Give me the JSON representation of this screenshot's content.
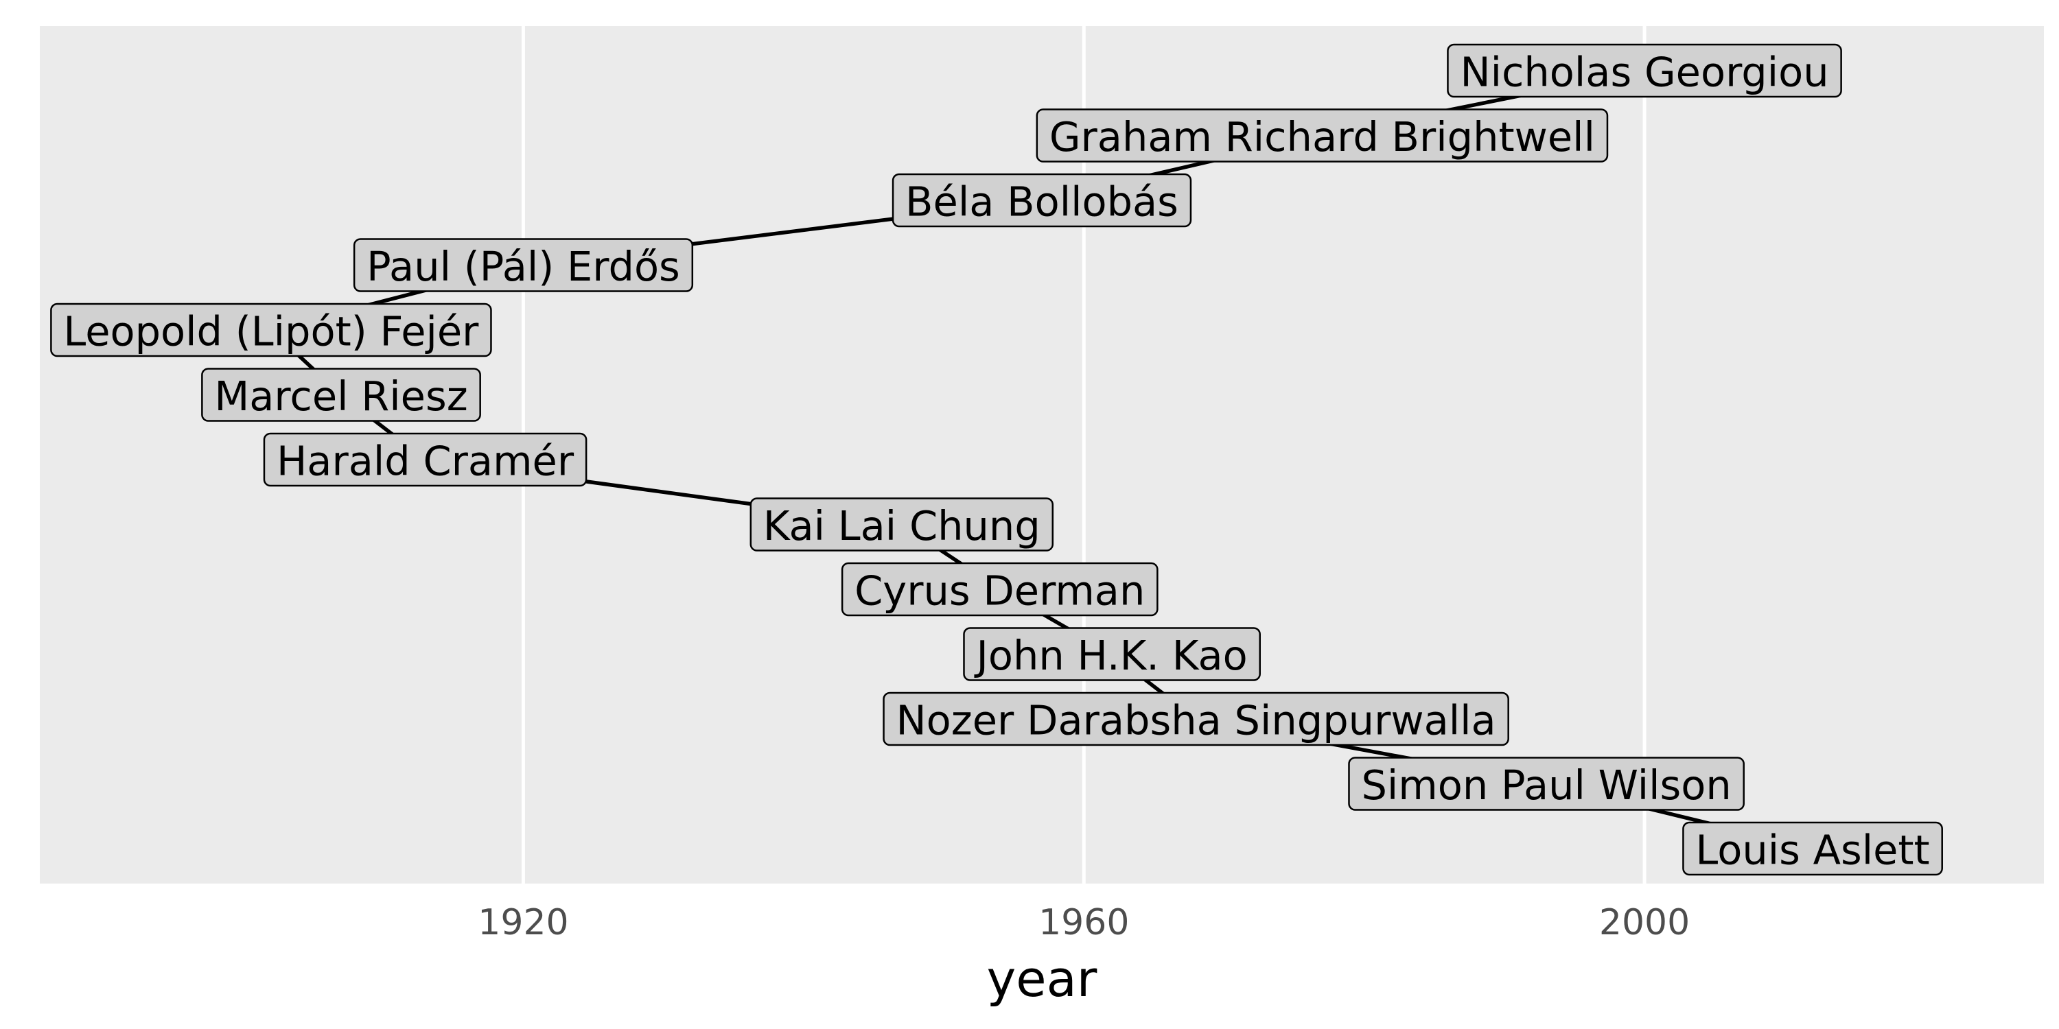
{
  "chart_data": {
    "type": "line",
    "xlabel": "year",
    "ylabel": "",
    "xlim": [
      1885.5,
      2028.5
    ],
    "x_ticks": [
      1920,
      1960,
      2000
    ],
    "grid": true,
    "legend": "none",
    "colors": {
      "panel": "#ebebeb",
      "grid": "#ffffff",
      "label_fill": "#d1d1d1",
      "edge": "#000000"
    },
    "nodes": [
      {
        "name": "Nicholas Georgiou",
        "year": 2000,
        "rank": 1
      },
      {
        "name": "Graham Richard Brightwell",
        "year": 1977,
        "rank": 2
      },
      {
        "name": "Béla Bollobás",
        "year": 1957,
        "rank": 3
      },
      {
        "name": "Paul (Pál) Erdős",
        "year": 1920,
        "rank": 4
      },
      {
        "name": "Leopold (Lipót) Fejér",
        "year": 1902,
        "rank": 5
      },
      {
        "name": "Marcel Riesz",
        "year": 1907,
        "rank": 6
      },
      {
        "name": "Harald Cramér",
        "year": 1913,
        "rank": 7
      },
      {
        "name": "Kai Lai Chung",
        "year": 1947,
        "rank": 8
      },
      {
        "name": "Cyrus Derman",
        "year": 1954,
        "rank": 9
      },
      {
        "name": "John H.K. Kao",
        "year": 1962,
        "rank": 10
      },
      {
        "name": "Nozer Darabsha Singpurwalla",
        "year": 1968,
        "rank": 11
      },
      {
        "name": "Simon Paul Wilson",
        "year": 1993,
        "rank": 12
      },
      {
        "name": "Louis Aslett",
        "year": 2012,
        "rank": 13
      }
    ]
  }
}
